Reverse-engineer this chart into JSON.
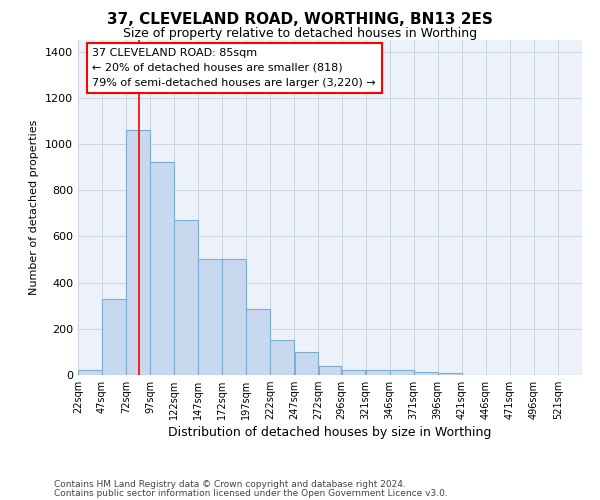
{
  "title": "37, CLEVELAND ROAD, WORTHING, BN13 2ES",
  "subtitle": "Size of property relative to detached houses in Worthing",
  "xlabel": "Distribution of detached houses by size in Worthing",
  "ylabel": "Number of detached properties",
  "footer_line1": "Contains HM Land Registry data © Crown copyright and database right 2024.",
  "footer_line2": "Contains public sector information licensed under the Open Government Licence v3.0.",
  "bar_color": "#c8d9ef",
  "bar_edge_color": "#7badd4",
  "grid_color": "#c8d4e4",
  "background_color": "#edf1f8",
  "vline_x": 85,
  "vline_color": "red",
  "annotation_text": "37 CLEVELAND ROAD: 85sqm\n← 20% of detached houses are smaller (818)\n79% of semi-detached houses are larger (3,220) →",
  "annotation_box_color": "white",
  "annotation_box_edge": "red",
  "categories": [
    "22sqm",
    "47sqm",
    "72sqm",
    "97sqm",
    "122sqm",
    "147sqm",
    "172sqm",
    "197sqm",
    "222sqm",
    "247sqm",
    "272sqm",
    "296sqm",
    "321sqm",
    "346sqm",
    "371sqm",
    "396sqm",
    "421sqm",
    "446sqm",
    "471sqm",
    "496sqm",
    "521sqm"
  ],
  "bin_edges": [
    22,
    47,
    72,
    97,
    122,
    147,
    172,
    197,
    222,
    247,
    272,
    296,
    321,
    346,
    371,
    396,
    421,
    446,
    471,
    496,
    521,
    546
  ],
  "values": [
    20,
    330,
    1060,
    920,
    670,
    500,
    500,
    285,
    150,
    100,
    40,
    22,
    22,
    20,
    12,
    8,
    0,
    0,
    0,
    0,
    0
  ],
  "ylim": [
    0,
    1450
  ],
  "yticks": [
    0,
    200,
    400,
    600,
    800,
    1000,
    1200,
    1400
  ]
}
